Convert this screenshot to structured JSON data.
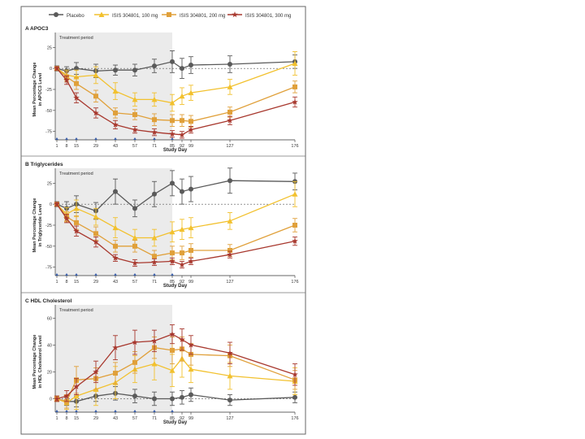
{
  "legend": {
    "placement": "top",
    "entries": [
      {
        "label": "Placebo",
        "color": "#5a5a5a",
        "marker": "circle"
      },
      {
        "label": "ISIS 304801, 100 mg",
        "color": "#f2c12e",
        "marker": "triangle"
      },
      {
        "label": "ISIS 304801, 200 mg",
        "color": "#e0a03a",
        "marker": "square"
      },
      {
        "label": "ISIS 304801, 300 mg",
        "color": "#a8382e",
        "marker": "star"
      }
    ]
  },
  "shared": {
    "treatment_label": "Treatment period",
    "treatment_end_day": 85,
    "xlabel": "Study Day",
    "x_ticks": [
      1,
      8,
      15,
      29,
      43,
      57,
      71,
      85,
      92,
      99,
      127,
      176
    ],
    "x_range": [
      1,
      176
    ]
  },
  "chart_data": [
    {
      "type": "line",
      "title": "A  APOC3",
      "ylabel": "Mean Percentage Change in APOC3 Level",
      "ylim": [
        -85,
        35
      ],
      "y_ticks": [
        -75,
        -50,
        -25,
        0,
        25
      ],
      "x": [
        1,
        8,
        15,
        29,
        43,
        57,
        71,
        85,
        92,
        99,
        127,
        176
      ],
      "series": [
        {
          "name": "Placebo",
          "values": [
            0,
            -3,
            0,
            -3,
            -2,
            -2,
            3,
            8,
            0,
            4,
            5,
            8
          ],
          "err": [
            3,
            5,
            7,
            8,
            6,
            7,
            8,
            13,
            12,
            10,
            10,
            8
          ]
        },
        {
          "name": "ISIS 304801, 100 mg",
          "values": [
            0,
            -8,
            -10,
            -8,
            -27,
            -37,
            -37,
            -41,
            -33,
            -29,
            -22,
            6
          ],
          "err": [
            2,
            6,
            8,
            10,
            10,
            8,
            8,
            10,
            10,
            9,
            9,
            14
          ]
        },
        {
          "name": "ISIS 304801, 200 mg",
          "values": [
            0,
            -10,
            -18,
            -33,
            -53,
            -55,
            -61,
            -62,
            -62,
            -63,
            -52,
            -22
          ],
          "err": [
            2,
            6,
            7,
            7,
            6,
            6,
            7,
            7,
            7,
            7,
            6,
            7
          ]
        },
        {
          "name": "ISIS 304801, 300 mg",
          "values": [
            0,
            -14,
            -35,
            -53,
            -67,
            -73,
            -76,
            -78,
            -79,
            -73,
            -62,
            -40
          ],
          "err": [
            2,
            5,
            6,
            6,
            5,
            4,
            4,
            4,
            4,
            4,
            5,
            6
          ]
        }
      ]
    },
    {
      "type": "line",
      "title": "B  Triglycerides",
      "ylabel": "Mean Percentage Change in Triglyceride Level",
      "ylim": [
        -85,
        35
      ],
      "y_ticks": [
        -75,
        -50,
        -25,
        0,
        25
      ],
      "x": [
        1,
        8,
        15,
        29,
        43,
        57,
        71,
        85,
        92,
        99,
        127,
        176
      ],
      "series": [
        {
          "name": "Placebo",
          "values": [
            0,
            -5,
            0,
            -8,
            15,
            -5,
            12,
            25,
            15,
            18,
            28,
            27
          ],
          "err": [
            3,
            8,
            10,
            10,
            15,
            10,
            15,
            15,
            15,
            15,
            15,
            10
          ]
        },
        {
          "name": "ISIS 304801, 100 mg",
          "values": [
            0,
            -12,
            -5,
            -15,
            -28,
            -40,
            -40,
            -33,
            -30,
            -28,
            -20,
            12
          ],
          "err": [
            2,
            8,
            10,
            10,
            12,
            10,
            10,
            12,
            12,
            12,
            10,
            15
          ]
        },
        {
          "name": "ISIS 304801, 200 mg",
          "values": [
            0,
            -15,
            -22,
            -35,
            -50,
            -50,
            -62,
            -58,
            -58,
            -55,
            -55,
            -25
          ],
          "err": [
            2,
            6,
            8,
            8,
            7,
            7,
            7,
            8,
            8,
            8,
            7,
            8
          ]
        },
        {
          "name": "ISIS 304801, 300 mg",
          "values": [
            0,
            -17,
            -32,
            -45,
            -64,
            -70,
            -69,
            -68,
            -72,
            -68,
            -60,
            -44
          ],
          "err": [
            2,
            5,
            6,
            6,
            4,
            4,
            4,
            4,
            4,
            4,
            4,
            5
          ]
        }
      ]
    },
    {
      "type": "line",
      "title": "C  HDL Cholesterol",
      "ylabel": "Mean Percentage Change in HDL Cholesterol Level",
      "ylim": [
        -10,
        65
      ],
      "y_ticks": [
        0,
        20,
        40,
        60
      ],
      "x": [
        1,
        8,
        15,
        29,
        43,
        57,
        71,
        85,
        92,
        99,
        127,
        176
      ],
      "series": [
        {
          "name": "Placebo",
          "values": [
            0,
            -2,
            -2,
            2,
            4,
            2,
            0,
            0,
            1,
            3,
            -1,
            1
          ],
          "err": [
            2,
            3,
            4,
            4,
            5,
            5,
            5,
            5,
            5,
            5,
            4,
            4
          ]
        },
        {
          "name": "ISIS 304801, 100 mg",
          "values": [
            0,
            -3,
            2,
            7,
            12,
            22,
            26,
            21,
            30,
            22,
            17,
            13
          ],
          "err": [
            2,
            5,
            10,
            12,
            12,
            10,
            12,
            12,
            14,
            10,
            10,
            10
          ]
        },
        {
          "name": "ISIS 304801, 200 mg",
          "values": [
            0,
            -2,
            14,
            15,
            19,
            27,
            38,
            36,
            37,
            33,
            32,
            14
          ],
          "err": [
            2,
            5,
            10,
            8,
            8,
            8,
            8,
            10,
            9,
            8,
            8,
            7
          ]
        },
        {
          "name": "ISIS 304801, 300 mg",
          "values": [
            0,
            2,
            9,
            20,
            38,
            42,
            43,
            48,
            44,
            40,
            34,
            18
          ],
          "err": [
            2,
            4,
            6,
            8,
            9,
            9,
            8,
            7,
            8,
            7,
            8,
            8
          ]
        }
      ]
    }
  ]
}
